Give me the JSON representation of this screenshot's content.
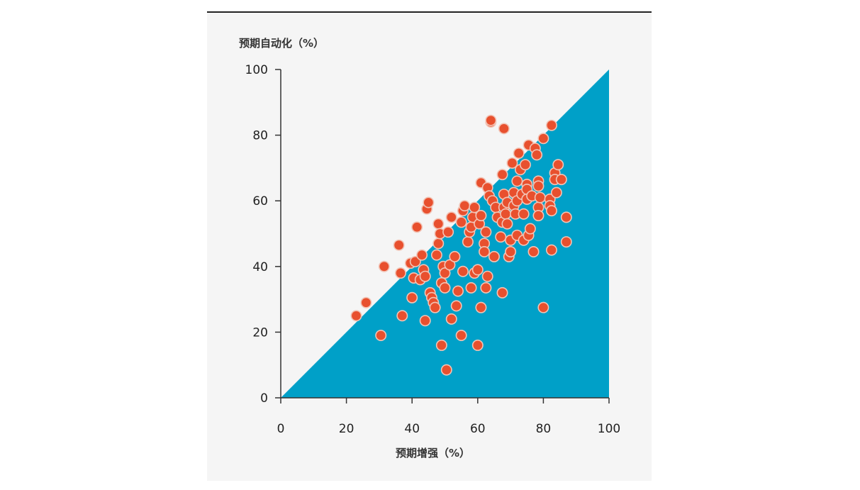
{
  "chart_data": {
    "type": "scatter",
    "title": "",
    "xlabel": "预期增强（%）",
    "ylabel": "预期自动化（%）",
    "xlim": [
      0,
      100
    ],
    "ylim": [
      0,
      100
    ],
    "x_ticks": [
      "0",
      "20",
      "40",
      "60",
      "80",
      "100"
    ],
    "y_ticks": [
      "0",
      "20",
      "40",
      "60",
      "80",
      "100"
    ],
    "grid": false,
    "legend": "none",
    "colors": {
      "panel_background": "#f5f5f5",
      "region_fill": "#00a0c8",
      "point_fill": "#e8502e",
      "point_stroke": "#f2c4b6",
      "axis": "#333333"
    },
    "shaded_region": {
      "description_none": "",
      "vertices": [
        [
          0,
          0
        ],
        [
          100,
          0
        ],
        [
          100,
          100
        ]
      ]
    },
    "series": [
      {
        "points": [
          [
            23,
            25
          ],
          [
            26,
            29
          ],
          [
            30.5,
            19
          ],
          [
            31.5,
            40
          ],
          [
            36,
            46.5
          ],
          [
            36.5,
            38
          ],
          [
            37,
            25
          ],
          [
            39.5,
            41
          ],
          [
            40,
            30.5
          ],
          [
            40.5,
            36.5
          ],
          [
            41,
            41.5
          ],
          [
            41.5,
            52
          ],
          [
            42.5,
            36
          ],
          [
            43,
            43.5
          ],
          [
            43.5,
            39
          ],
          [
            44,
            37
          ],
          [
            44,
            23.5
          ],
          [
            44.5,
            57.5
          ],
          [
            45,
            59.5
          ],
          [
            45.5,
            32
          ],
          [
            46,
            30.5
          ],
          [
            46.5,
            29
          ],
          [
            47,
            27.5
          ],
          [
            47.5,
            43.5
          ],
          [
            48,
            47
          ],
          [
            48,
            53
          ],
          [
            48.5,
            50
          ],
          [
            49,
            16
          ],
          [
            49,
            35
          ],
          [
            49.5,
            40
          ],
          [
            50,
            38
          ],
          [
            50,
            33.5
          ],
          [
            50.5,
            8.5
          ],
          [
            51,
            50.5
          ],
          [
            51.5,
            40.5
          ],
          [
            52,
            55
          ],
          [
            52,
            24
          ],
          [
            53,
            43
          ],
          [
            53.5,
            28
          ],
          [
            54,
            32.5
          ],
          [
            55,
            19
          ],
          [
            55,
            53.5
          ],
          [
            55.5,
            57
          ],
          [
            55.5,
            38.5
          ],
          [
            56,
            58.5
          ],
          [
            57,
            47.5
          ],
          [
            57.5,
            50.5
          ],
          [
            58,
            52
          ],
          [
            58,
            33.5
          ],
          [
            58.5,
            55
          ],
          [
            59,
            58
          ],
          [
            59,
            38
          ],
          [
            60,
            39
          ],
          [
            60,
            16
          ],
          [
            60.5,
            53
          ],
          [
            61,
            55.5
          ],
          [
            61,
            65.5
          ],
          [
            61,
            27.5
          ],
          [
            62,
            47
          ],
          [
            62,
            44.5
          ],
          [
            62.5,
            50.5
          ],
          [
            62.5,
            33.5
          ],
          [
            63,
            37
          ],
          [
            63,
            64
          ],
          [
            63.5,
            61.5
          ],
          [
            64,
            84
          ],
          [
            64,
            84.5
          ],
          [
            64.5,
            60
          ],
          [
            65,
            43
          ],
          [
            65.5,
            58
          ],
          [
            66,
            55
          ],
          [
            67,
            49
          ],
          [
            67.5,
            53.5
          ],
          [
            67.5,
            68
          ],
          [
            67.5,
            32
          ],
          [
            68,
            62
          ],
          [
            68,
            58
          ],
          [
            68,
            82
          ],
          [
            68.5,
            56
          ],
          [
            69,
            53
          ],
          [
            69,
            59.5
          ],
          [
            69.5,
            43
          ],
          [
            70,
            44.5
          ],
          [
            70,
            48
          ],
          [
            70.5,
            71.5
          ],
          [
            71,
            62.5
          ],
          [
            71,
            58.5
          ],
          [
            71.5,
            56
          ],
          [
            72,
            66
          ],
          [
            72,
            60
          ],
          [
            72,
            49.5
          ],
          [
            72.5,
            74.5
          ],
          [
            73,
            69.5
          ],
          [
            73.5,
            62
          ],
          [
            74,
            48
          ],
          [
            74,
            56
          ],
          [
            74.5,
            71
          ],
          [
            75,
            65
          ],
          [
            75,
            63.5
          ],
          [
            75,
            60.5
          ],
          [
            75.5,
            77
          ],
          [
            75.5,
            49.5
          ],
          [
            76,
            51.5
          ],
          [
            76.5,
            61.5
          ],
          [
            77,
            44.5
          ],
          [
            77.5,
            76
          ],
          [
            78,
            74
          ],
          [
            78.5,
            66
          ],
          [
            78.5,
            64.5
          ],
          [
            78.5,
            58
          ],
          [
            78.5,
            55.5
          ],
          [
            79,
            61
          ],
          [
            80,
            79
          ],
          [
            80,
            27.5
          ],
          [
            82,
            60.5
          ],
          [
            82,
            58.5
          ],
          [
            82.5,
            45
          ],
          [
            82.5,
            57
          ],
          [
            82.5,
            83
          ],
          [
            83.5,
            68.5
          ],
          [
            83.5,
            66.5
          ],
          [
            84,
            62.5
          ],
          [
            84.5,
            71
          ],
          [
            85.5,
            66.5
          ],
          [
            87,
            55
          ],
          [
            87,
            47.5
          ]
        ]
      }
    ]
  }
}
